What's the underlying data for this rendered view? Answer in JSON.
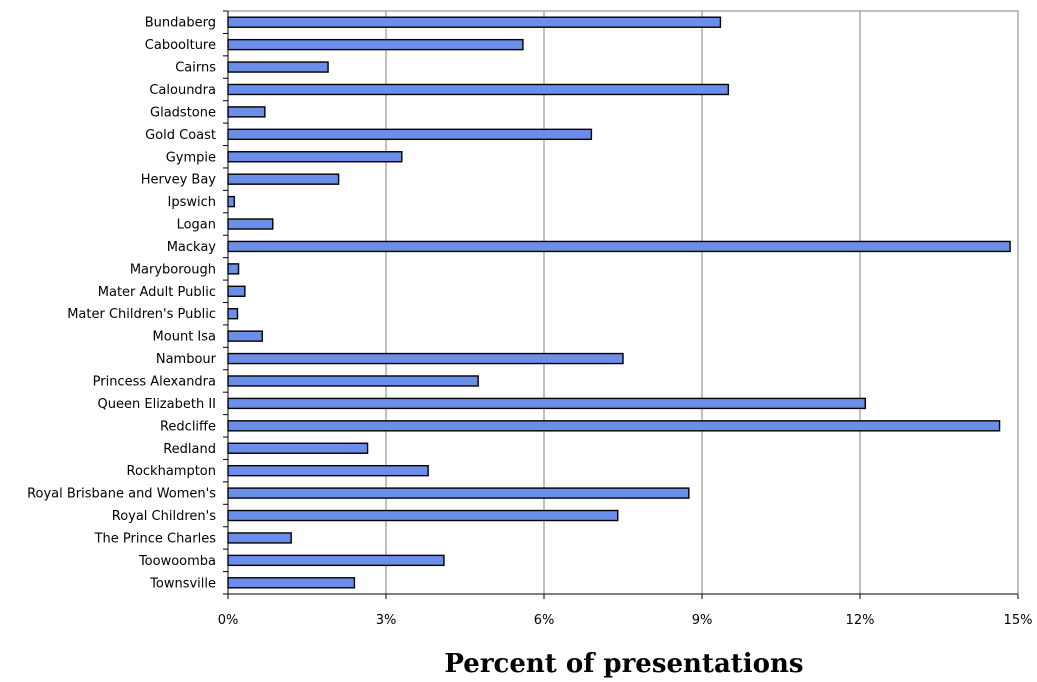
{
  "chart_data": {
    "type": "bar",
    "orientation": "horizontal",
    "title": "",
    "xlabel": "Percent of presentations",
    "ylabel": "",
    "xlim": [
      0,
      15
    ],
    "xticks": [
      0,
      3,
      6,
      9,
      12,
      15
    ],
    "xtick_labels": [
      "0%",
      "3%",
      "6%",
      "9%",
      "12%",
      "15%"
    ],
    "grid": "vertical",
    "legend": "none",
    "bar_color": "#6b8ee8",
    "bar_edge_color": "#000000",
    "categories": [
      "Bundaberg",
      "Caboolture",
      "Cairns",
      "Caloundra",
      "Gladstone",
      "Gold Coast",
      "Gympie",
      "Hervey Bay",
      "Ipswich",
      "Logan",
      "Mackay",
      "Maryborough",
      "Mater Adult Public",
      "Mater Children's Public",
      "Mount Isa",
      "Nambour",
      "Princess Alexandra",
      "Queen Elizabeth II",
      "Redcliffe",
      "Redland",
      "Rockhampton",
      "Royal Brisbane and Women's",
      "Royal Children's",
      "The Prince Charles",
      "Toowoomba",
      "Townsville"
    ],
    "values": [
      9.35,
      5.6,
      1.9,
      9.5,
      0.7,
      6.9,
      3.3,
      2.1,
      0.12,
      0.85,
      14.85,
      0.2,
      0.32,
      0.18,
      0.65,
      7.5,
      4.75,
      12.1,
      14.65,
      2.65,
      3.8,
      8.75,
      7.4,
      1.2,
      4.1,
      2.4
    ]
  }
}
